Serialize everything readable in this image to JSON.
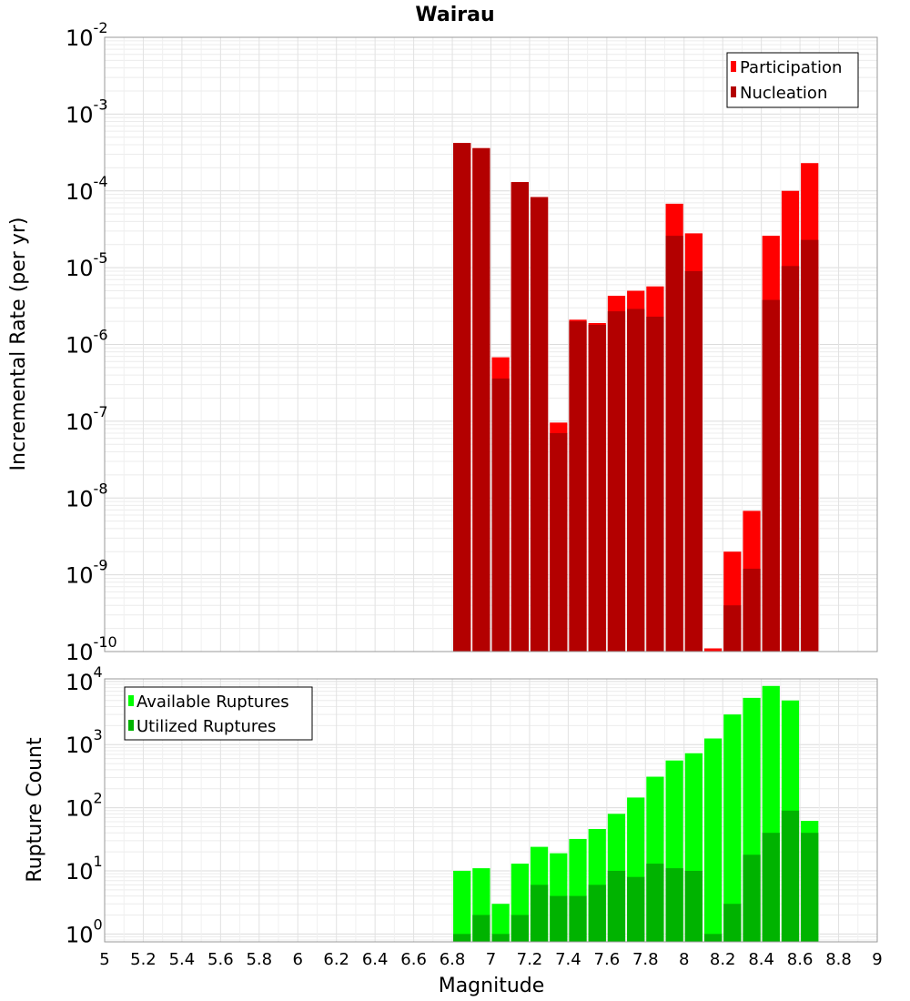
{
  "chart_data": [
    {
      "type": "bar",
      "title": "Wairau",
      "ylabel": "Incremental Rate (per yr)",
      "xlabel": "",
      "yscale": "log",
      "ylim": [
        1e-10,
        0.01
      ],
      "xlim": [
        5,
        9
      ],
      "grid": true,
      "legend_position": "top-right",
      "x": [
        6.8,
        6.9,
        7.0,
        7.1,
        7.2,
        7.3,
        7.4,
        7.5,
        7.6,
        7.7,
        7.8,
        7.9,
        8.0,
        8.1,
        8.2,
        8.3,
        8.4,
        8.5,
        8.6
      ],
      "series": [
        {
          "name": "Participation",
          "color": "#ff0000",
          "values": [
            0.00042,
            0.00036,
            6.8e-07,
            0.00013,
            8.3e-05,
            9.6e-08,
            2.1e-06,
            1.9e-06,
            4.3e-06,
            5e-06,
            5.7e-06,
            6.8e-05,
            2.8e-05,
            1.1e-10,
            2e-09,
            6.8e-09,
            2.6e-05,
            0.0001,
            0.00023
          ]
        },
        {
          "name": "Nucleation",
          "color": "#b30000",
          "values": [
            0.00042,
            0.00036,
            3.6e-07,
            0.00013,
            8.3e-05,
            7e-08,
            2e-06,
            1.8e-06,
            2.7e-06,
            2.9e-06,
            2.3e-06,
            2.6e-05,
            9e-06,
            1e-10,
            4e-10,
            1.2e-09,
            3.8e-06,
            1.05e-05,
            2.3e-05
          ]
        }
      ]
    },
    {
      "type": "bar",
      "title": "",
      "ylabel": "Rupture Count",
      "xlabel": "Magnitude",
      "yscale": "log",
      "ylim": [
        0.75,
        11000
      ],
      "xlim": [
        5,
        9
      ],
      "grid": true,
      "legend_position": "top-left",
      "x": [
        6.8,
        6.9,
        7.0,
        7.1,
        7.2,
        7.3,
        7.4,
        7.5,
        7.6,
        7.7,
        7.8,
        7.9,
        8.0,
        8.1,
        8.2,
        8.3,
        8.4,
        8.5,
        8.6
      ],
      "series": [
        {
          "name": "Available Ruptures",
          "color": "#00ff00",
          "values": [
            10,
            11,
            3,
            13,
            24,
            19,
            32,
            46,
            80,
            145,
            310,
            560,
            730,
            1250,
            3000,
            5500,
            8500,
            5000,
            62
          ]
        },
        {
          "name": "Utilized Ruptures",
          "color": "#00b300",
          "values": [
            1,
            2,
            1,
            2,
            6,
            4,
            4,
            6,
            10,
            8,
            13,
            11,
            10,
            1,
            3,
            18,
            40,
            90,
            40
          ]
        }
      ]
    }
  ],
  "x_ticks": [
    "5",
    "5.2",
    "5.4",
    "5.6",
    "5.8",
    "6",
    "6.2",
    "6.4",
    "6.6",
    "6.8",
    "7",
    "7.2",
    "7.4",
    "7.6",
    "7.8",
    "8",
    "8.2",
    "8.4",
    "8.6",
    "8.8",
    "9"
  ],
  "top_y_ticks": [
    {
      "base": "10",
      "exp": "-2"
    },
    {
      "base": "10",
      "exp": "-3"
    },
    {
      "base": "10",
      "exp": "-4"
    },
    {
      "base": "10",
      "exp": "-5"
    },
    {
      "base": "10",
      "exp": "-6"
    },
    {
      "base": "10",
      "exp": "-7"
    },
    {
      "base": "10",
      "exp": "-8"
    },
    {
      "base": "10",
      "exp": "-9"
    },
    {
      "base": "10",
      "exp": "-10"
    }
  ],
  "bottom_y_ticks": [
    {
      "base": "10",
      "exp": "4"
    },
    {
      "base": "10",
      "exp": "3"
    },
    {
      "base": "10",
      "exp": "2"
    },
    {
      "base": "10",
      "exp": "1"
    },
    {
      "base": "10",
      "exp": "0"
    }
  ]
}
